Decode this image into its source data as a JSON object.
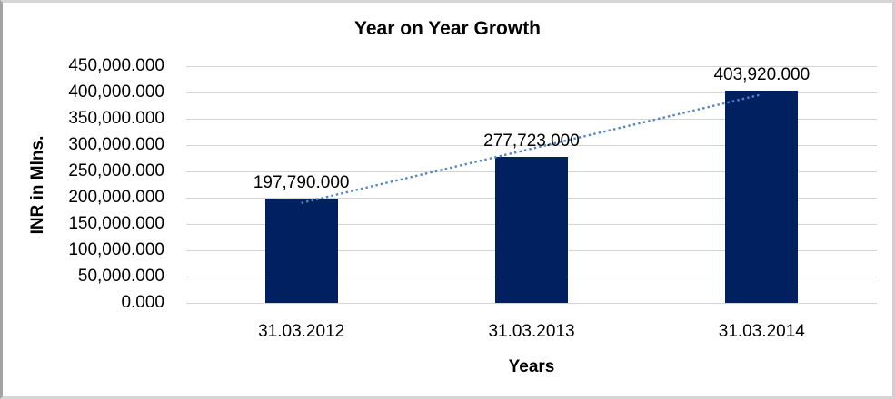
{
  "chart_data": {
    "type": "bar",
    "title": "Year on Year Growth",
    "xlabel": "Years",
    "ylabel": "INR in Mlns.",
    "categories": [
      "31.03.2012",
      "31.03.2013",
      "31.03.2014"
    ],
    "values": [
      197790,
      277723,
      403920
    ],
    "data_labels": [
      "197,790.000",
      "277,723.000",
      "403,920.000"
    ],
    "y_ticks": [
      "450,000.000",
      "400,000.000",
      "350,000.000",
      "300,000.000",
      "250,000.000",
      "200,000.000",
      "150,000.000",
      "100,000.000",
      "50,000.000",
      "0.000"
    ],
    "ylim": [
      0,
      450000
    ],
    "grid": true,
    "legend": "none",
    "trendline": {
      "type": "linear",
      "style": "dotted"
    },
    "colors": {
      "bar": "#002060",
      "trendline": "#4E86C9",
      "gridline": "#D4D4D4",
      "text": "#000000",
      "background": "#FFFFFF"
    }
  }
}
